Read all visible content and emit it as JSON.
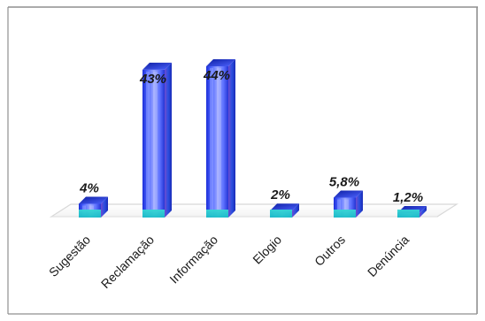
{
  "chart_data": {
    "type": "bar",
    "categories": [
      "Sugestão",
      "Reclamação",
      "Informação",
      "Elogio",
      "Outros",
      "Denúncia"
    ],
    "values": [
      4,
      43,
      44,
      2,
      5.8,
      1.2
    ],
    "data_labels": [
      "4%",
      "43%",
      "44%",
      "2%",
      "5,8%",
      "1,2%"
    ],
    "ylim": [
      0,
      44
    ],
    "grid": false,
    "legend": "none",
    "colors": {
      "bar_dark": "#1f2fd0",
      "bar_mid": "#4b63ff",
      "bar_light": "#9da7ff",
      "bar_accent": "#5a44c8",
      "bar_cyan": "#25d8d8",
      "floor": "#f6f6f6",
      "floor_stroke": "#d8d8d8",
      "border": "#8f8f8f",
      "text": "#1a1a1a"
    }
  }
}
